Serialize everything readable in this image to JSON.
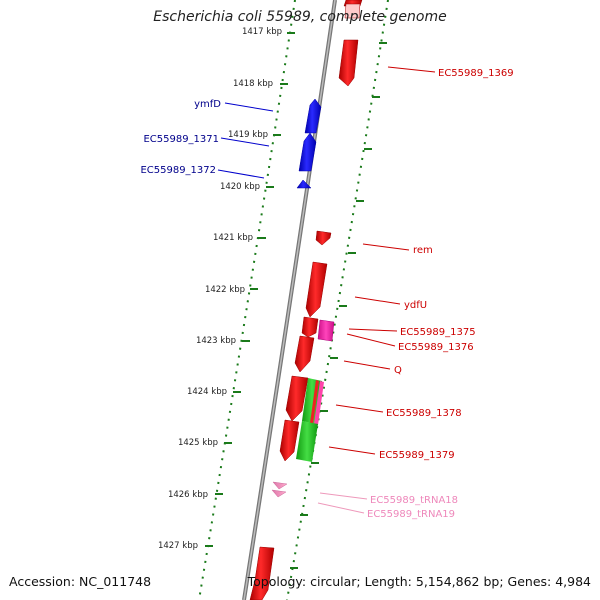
{
  "title": "Escherichia coli 55989, complete genome",
  "accession_text": "Accession: NC_011748",
  "summary_text": "Topology: circular; Length: 5,154,862 bp; Genes: 4,984",
  "tick_labels": [
    "1417 kbp",
    "1418 kbp",
    "1419 kbp",
    "1420 kbp",
    "1421 kbp",
    "1422 kbp",
    "1423 kbp",
    "1424 kbp",
    "1425 kbp",
    "1426 kbp",
    "1427 kbp"
  ],
  "colors": {
    "forward_gene": "#0000ee",
    "reverse_gene": "#ee0000",
    "rna_gene": "#ee88bb",
    "pink_feature": "#ee22aa",
    "green_feature": "#22bb22",
    "tick": "#1a7a1a",
    "backbone": "#888888"
  },
  "gene_labels": [
    {
      "name": "ymfD",
      "color": "#00008b"
    },
    {
      "name": "EC55989_1371",
      "color": "#00008b"
    },
    {
      "name": "EC55989_1372",
      "color": "#00008b"
    },
    {
      "name": "EC55989_1369",
      "color": "#cc0000"
    },
    {
      "name": "rem",
      "color": "#cc0000"
    },
    {
      "name": "ydfU",
      "color": "#cc0000"
    },
    {
      "name": "EC55989_1375",
      "color": "#cc0000"
    },
    {
      "name": "EC55989_1376",
      "color": "#cc0000"
    },
    {
      "name": "Q",
      "color": "#cc0000"
    },
    {
      "name": "EC55989_1378",
      "color": "#cc0000"
    },
    {
      "name": "EC55989_1379",
      "color": "#cc0000"
    },
    {
      "name": "EC55989_tRNA18",
      "color": "#ee88bb"
    },
    {
      "name": "EC55989_tRNA19",
      "color": "#ee88bb"
    }
  ]
}
